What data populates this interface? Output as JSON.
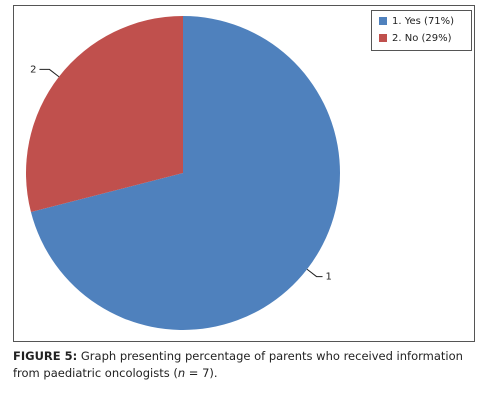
{
  "chart_data": {
    "type": "pie",
    "categories": [
      "1. Yes (71%)",
      "2. No (29%)"
    ],
    "slice_labels": [
      "1",
      "2"
    ],
    "values": [
      71,
      29
    ],
    "colors": [
      "#4f81bd",
      "#c0504d"
    ],
    "legend": "top-right"
  },
  "caption": {
    "label": "FIGURE 5:",
    "text_before": " Graph presenting percentage of parents who received information from paediatric oncologists (",
    "italic": "n",
    "text_after": " = 7)."
  }
}
